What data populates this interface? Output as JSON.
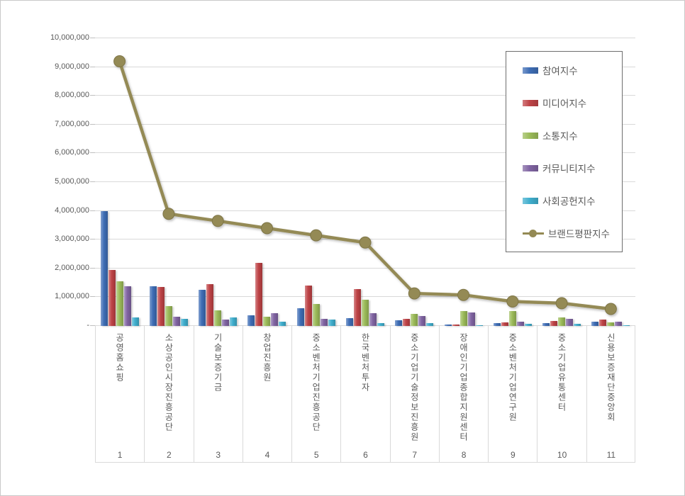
{
  "chart_data": {
    "type": "bar",
    "subtype": "grouped-bars-with-line-overlay",
    "title": "",
    "xlabel": "",
    "ylabel": "",
    "ylim": [
      0,
      10000000
    ],
    "grid": "horizontal",
    "legend_position": "inside-top-right",
    "y_ticks": [
      "10,000,000",
      "9,000,000",
      "8,000,000",
      "7,000,000",
      "6,000,000",
      "5,000,000",
      "4,000,000",
      "3,000,000",
      "2,000,000",
      "1,000,000",
      "-"
    ],
    "categories": [
      {
        "label": "공영홈쇼핑",
        "rank": "1"
      },
      {
        "label": "소상공인시장진흥공단",
        "rank": "2"
      },
      {
        "label": "기술보증기금",
        "rank": "3"
      },
      {
        "label": "창업진흥원",
        "rank": "4"
      },
      {
        "label": "중소벤처기업진흥공단",
        "rank": "5"
      },
      {
        "label": "한국벤처투자",
        "rank": "6"
      },
      {
        "label": "중소기업기술정보진흥원",
        "rank": "7"
      },
      {
        "label": "장애인기업종합지원센터",
        "rank": "8"
      },
      {
        "label": "중소벤처기업연구원",
        "rank": "9"
      },
      {
        "label": "중소기업유통센터",
        "rank": "10"
      },
      {
        "label": "신용보증재단중앙회",
        "rank": "11"
      }
    ],
    "series": [
      {
        "name": "참여지수",
        "type": "bar",
        "color": "#3E6DB5",
        "values": [
          4000000,
          1390000,
          1250000,
          360000,
          620000,
          260000,
          200000,
          60000,
          100000,
          90000,
          140000
        ]
      },
      {
        "name": "미디어지수",
        "type": "bar",
        "color": "#BE4346",
        "values": [
          1950000,
          1350000,
          1460000,
          2200000,
          1410000,
          1270000,
          240000,
          60000,
          115000,
          180000,
          220000
        ]
      },
      {
        "name": "소통지수",
        "type": "bar",
        "color": "#9BBB59",
        "values": [
          1550000,
          680000,
          530000,
          320000,
          770000,
          910000,
          410000,
          520000,
          510000,
          300000,
          120000
        ]
      },
      {
        "name": "커뮤니티지수",
        "type": "bar",
        "color": "#8064A2",
        "values": [
          1370000,
          310000,
          220000,
          440000,
          240000,
          440000,
          340000,
          470000,
          160000,
          240000,
          140000
        ]
      },
      {
        "name": "사회공헌지수",
        "type": "bar",
        "color": "#3FAECD",
        "values": [
          300000,
          250000,
          300000,
          160000,
          210000,
          100000,
          100000,
          25000,
          75000,
          80000,
          30000
        ]
      },
      {
        "name": "브랜드평판지수",
        "type": "line",
        "color": "#948A54",
        "values": [
          9200000,
          3900000,
          3650000,
          3400000,
          3150000,
          2900000,
          1130000,
          1080000,
          850000,
          790000,
          590000
        ]
      }
    ]
  }
}
